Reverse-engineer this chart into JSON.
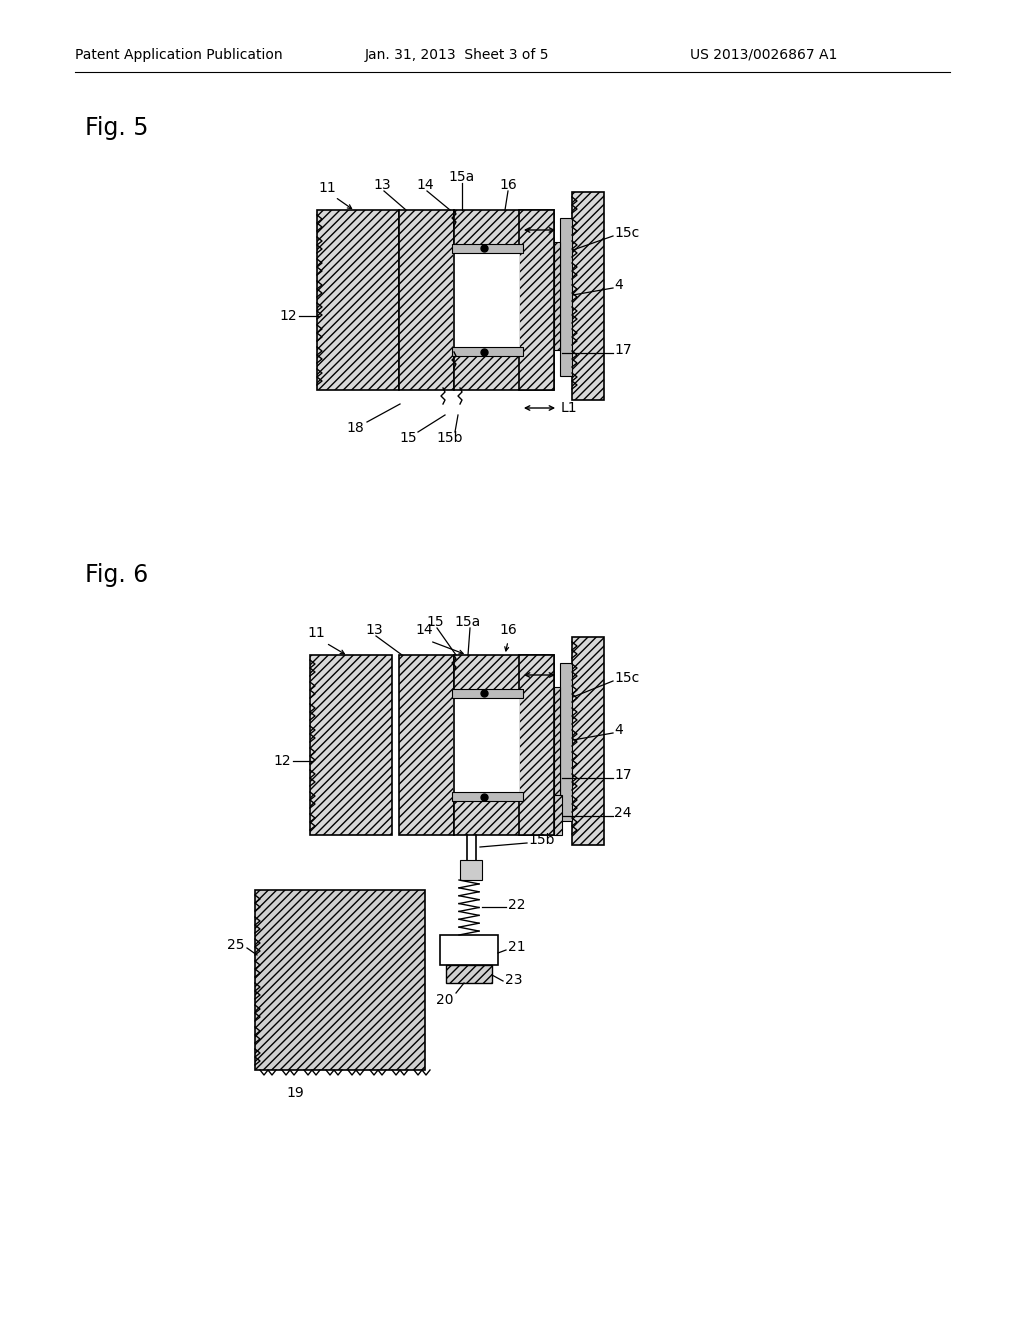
{
  "bg_color": "#ffffff",
  "header_left": "Patent Application Publication",
  "header_center": "Jan. 31, 2013  Sheet 3 of 5",
  "header_right": "US 2013/0026867 A1",
  "fig5_label": "Fig. 5",
  "fig6_label": "Fig. 6",
  "hatch_color": "#000000",
  "hatch_fc": "#d8d8d8",
  "line_color": "#000000"
}
